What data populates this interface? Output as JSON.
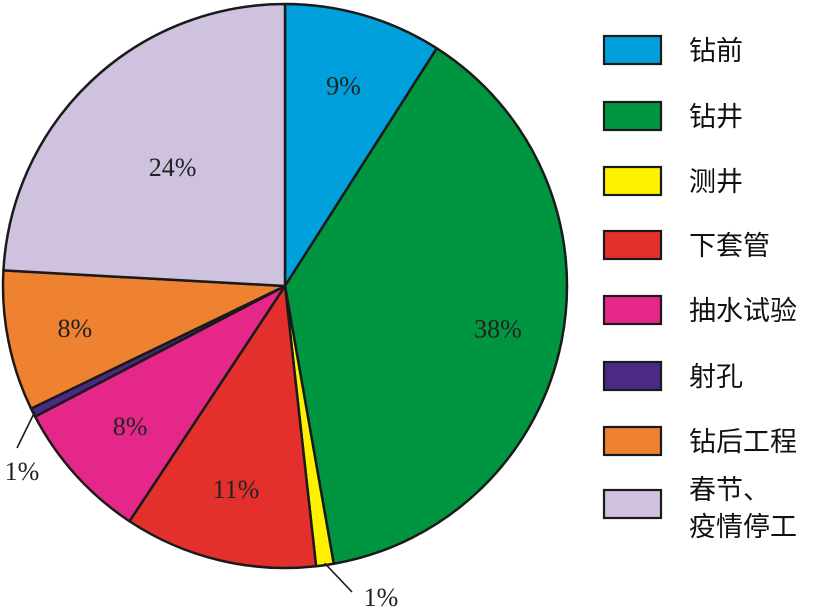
{
  "chart_data": {
    "type": "pie",
    "title": "",
    "legend_position": "right",
    "slices": [
      {
        "label": "钻前",
        "value": 9,
        "value_label": "9%",
        "color": "#00a0dc"
      },
      {
        "label": "钻井",
        "value": 38,
        "value_label": "38%",
        "color": "#009540"
      },
      {
        "label": "测井",
        "value": 1,
        "value_label": "1%",
        "color": "#fff200"
      },
      {
        "label": "下套管",
        "value": 11,
        "value_label": "11%",
        "color": "#e4302c"
      },
      {
        "label": "抽水试验",
        "value": 8,
        "value_label": "8%",
        "color": "#e5278a"
      },
      {
        "label": "射孔",
        "value": 0.5,
        "value_label": "1%",
        "color": "#4b2a85"
      },
      {
        "label": "钻后工程",
        "value": 8,
        "value_label": "8%",
        "color": "#ee8230"
      },
      {
        "label": "春节、疫情停工",
        "value": 24,
        "value_label": "24%",
        "color": "#cfc2df"
      }
    ]
  }
}
